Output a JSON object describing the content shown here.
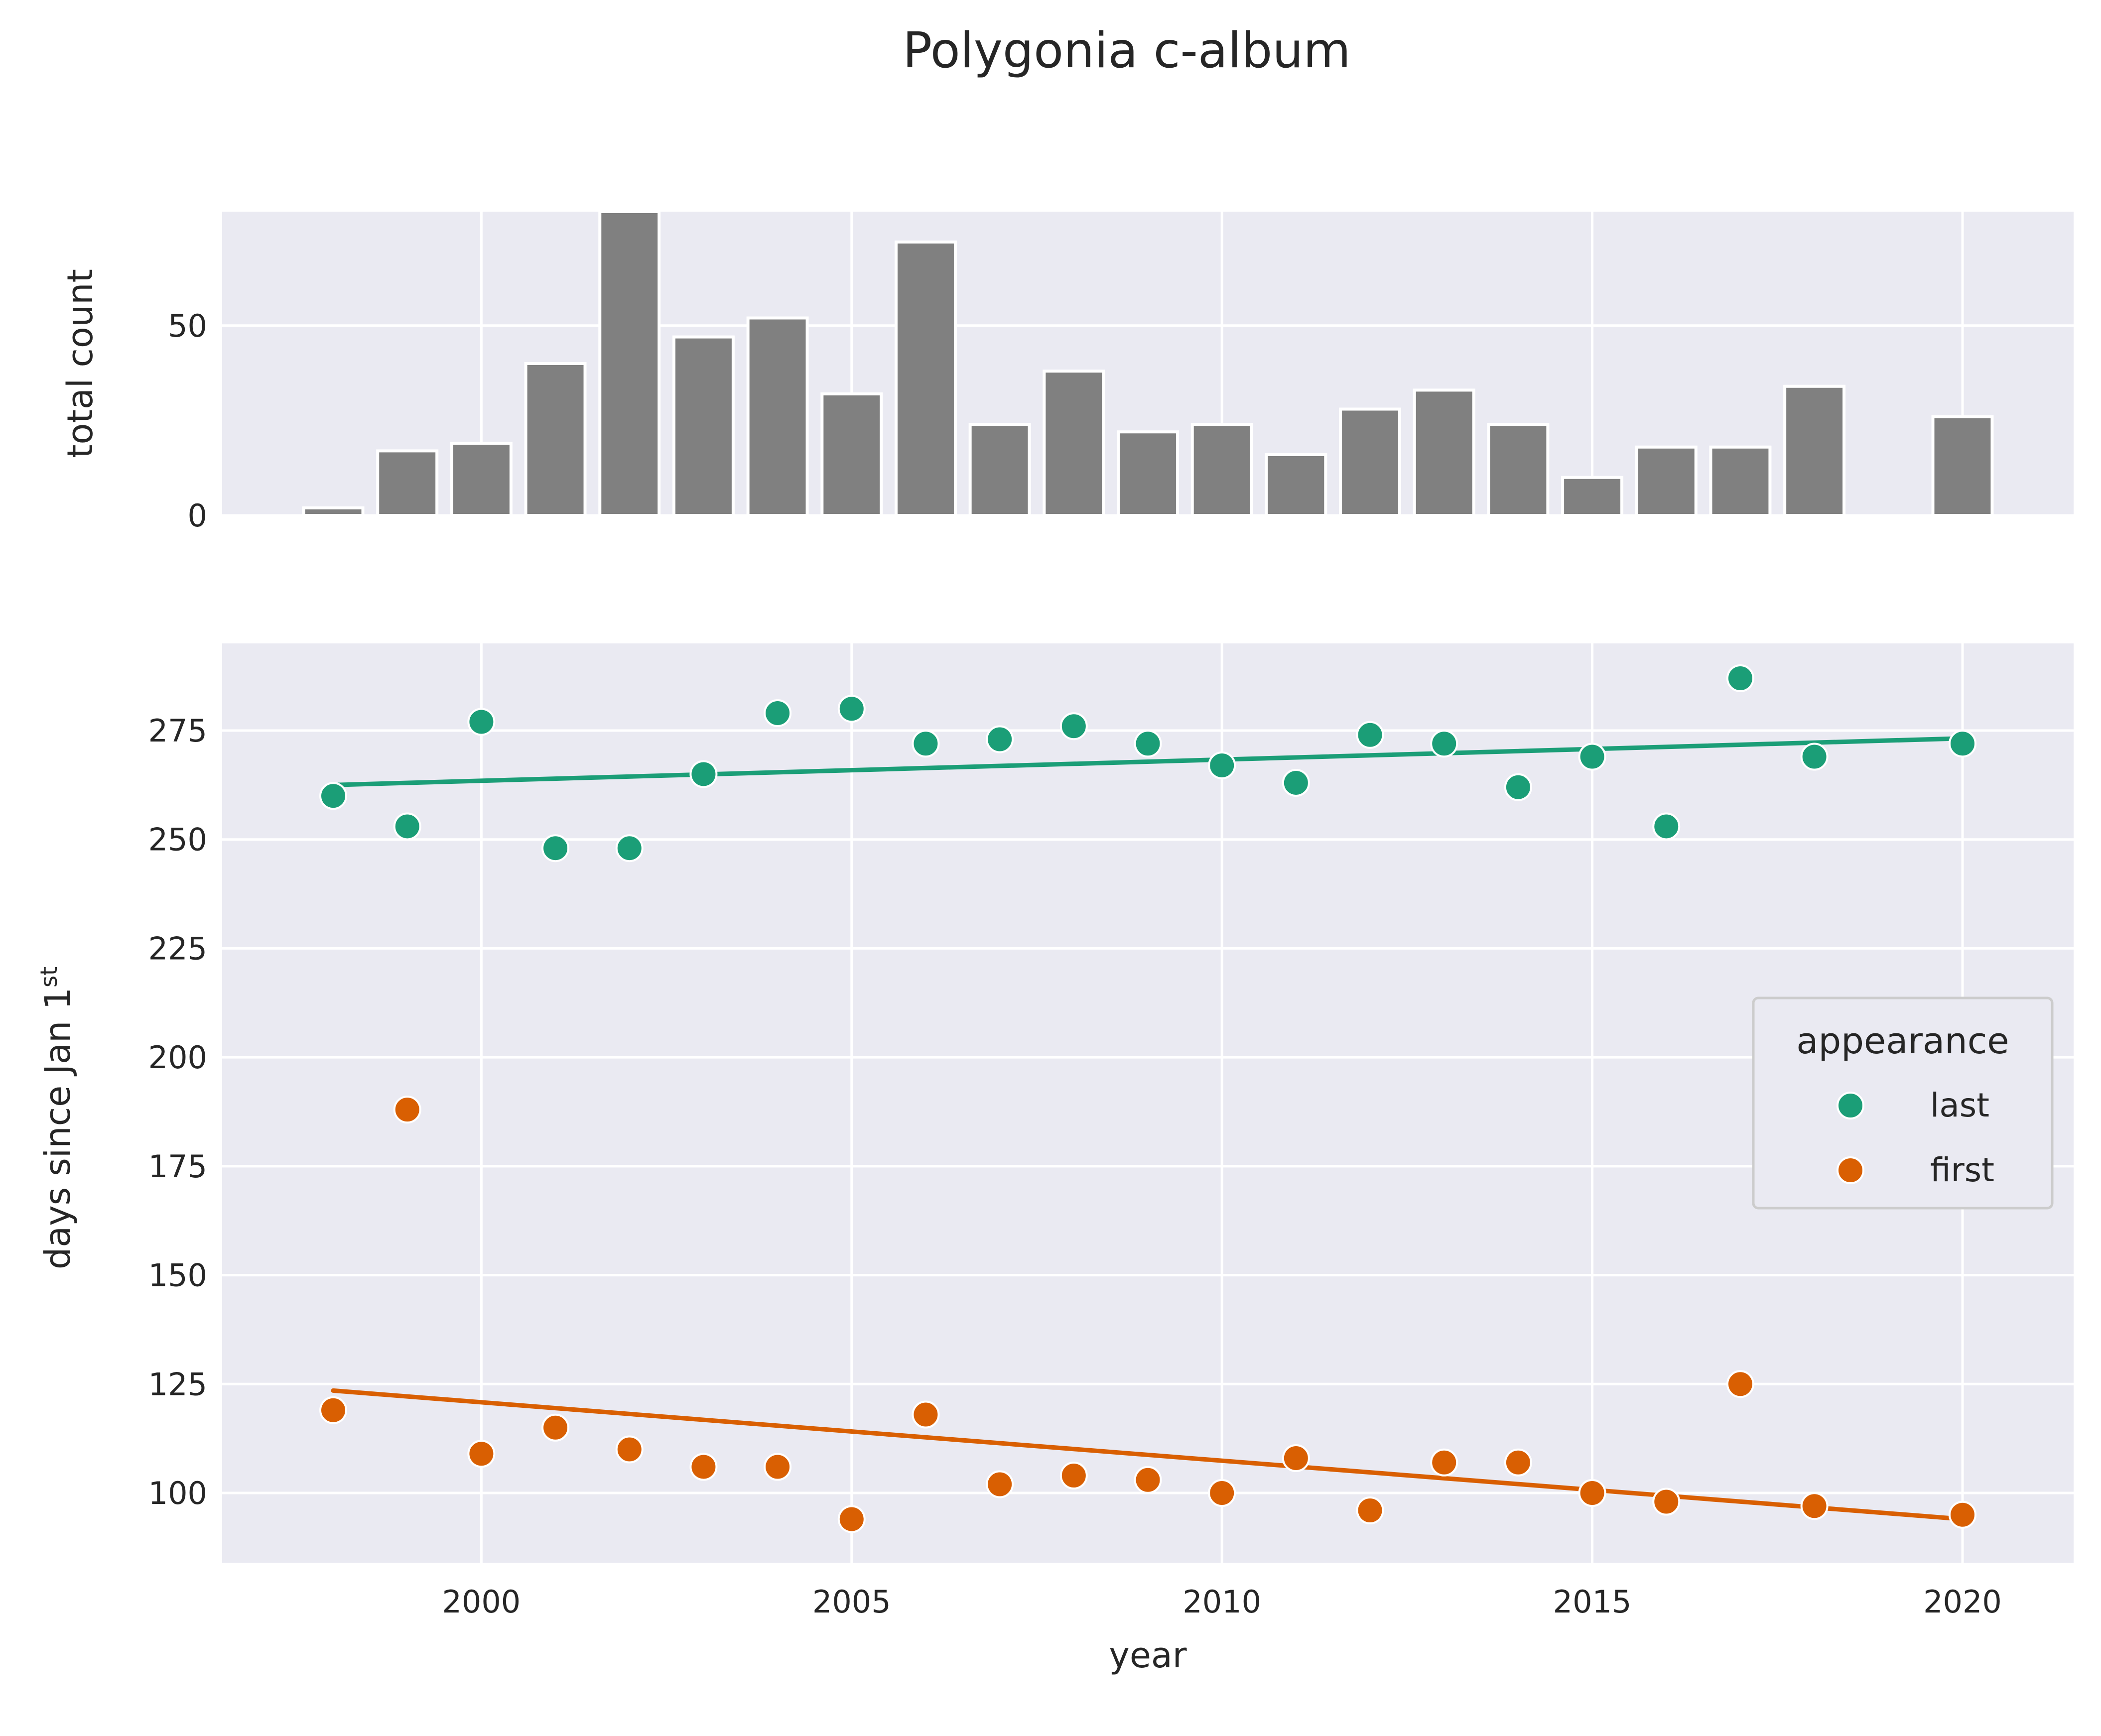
{
  "chart_data": {
    "title": "Polygonia c-album",
    "colors": {
      "last": "#1b9e77",
      "first": "#d95f02",
      "bars": "#808080",
      "panel_bg": "#eaeaf2",
      "grid": "#ffffff"
    },
    "grid": true,
    "charts": [
      {
        "type": "bar",
        "ylabel": "total count",
        "xlim": [
          1996.5,
          2021.5
        ],
        "ylim": [
          0,
          80
        ],
        "yticks": [
          0,
          50
        ],
        "x": [
          1998,
          1999,
          2000,
          2001,
          2002,
          2003,
          2004,
          2005,
          2006,
          2007,
          2008,
          2009,
          2010,
          2011,
          2012,
          2013,
          2014,
          2015,
          2016,
          2017,
          2018,
          2020
        ],
        "values": [
          2,
          17,
          19,
          40,
          80,
          47,
          52,
          32,
          72,
          24,
          38,
          22,
          24,
          16,
          28,
          33,
          24,
          10,
          18,
          18,
          34,
          26
        ]
      },
      {
        "type": "scatter",
        "xlabel": "year",
        "ylabel_main": "days since Jan 1",
        "ylabel_sup": "st",
        "xlim": [
          1996.5,
          2021.5
        ],
        "ylim": [
          84,
          295
        ],
        "xticks": [
          2000,
          2005,
          2010,
          2015,
          2020
        ],
        "yticks": [
          100,
          125,
          150,
          175,
          200,
          225,
          250,
          275
        ],
        "legend": {
          "title": "appearance",
          "position": "right"
        },
        "series": [
          {
            "name": "last",
            "x": [
              1998,
              1999,
              2000,
              2001,
              2002,
              2003,
              2004,
              2005,
              2006,
              2007,
              2008,
              2009,
              2010,
              2011,
              2012,
              2013,
              2014,
              2015,
              2016,
              2017,
              2018,
              2020
            ],
            "y": [
              260,
              253,
              277,
              248,
              248,
              265,
              279,
              280,
              272,
              273,
              276,
              272,
              267,
              263,
              274,
              272,
              262,
              269,
              253,
              287,
              269,
              272
            ],
            "trend": [
              [
                1998,
                262.5
              ],
              [
                2020,
                273.2
              ]
            ]
          },
          {
            "name": "first",
            "x": [
              1998,
              1999,
              2000,
              2001,
              2002,
              2003,
              2004,
              2005,
              2006,
              2007,
              2008,
              2009,
              2010,
              2011,
              2012,
              2013,
              2014,
              2015,
              2016,
              2017,
              2018,
              2020
            ],
            "y": [
              119,
              188,
              109,
              115,
              110,
              106,
              106,
              94,
              118,
              102,
              104,
              103,
              100,
              108,
              96,
              107,
              107,
              100,
              98,
              125,
              97,
              95
            ],
            "trend": [
              [
                1998,
                123.5
              ],
              [
                2020,
                94.0
              ]
            ]
          }
        ]
      }
    ]
  }
}
